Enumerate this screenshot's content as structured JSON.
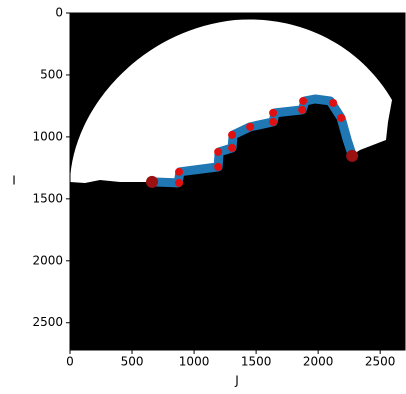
{
  "chart_data": {
    "type": "line",
    "xlabel": "J",
    "ylabel": "I",
    "xlim": [
      0,
      2700
    ],
    "ylim": [
      2720,
      0
    ],
    "xticks": [
      0,
      500,
      1000,
      1500,
      2000,
      2500
    ],
    "yticks": [
      0,
      500,
      1000,
      1500,
      2000,
      2500
    ],
    "series": [
      {
        "type": "line",
        "color": "#1f77b4",
        "x": [
          661,
          871,
          887,
          1194,
          1202,
          1306,
          1315,
          1452,
          1637,
          1653,
          1871,
          1895,
          1976,
          2097,
          2185,
          2234,
          2274
        ],
        "values": [
          1363,
          1371,
          1282,
          1242,
          1121,
          1089,
          984,
          919,
          879,
          806,
          782,
          710,
          694,
          710,
          847,
          1024,
          1145
        ]
      },
      {
        "type": "scatter",
        "color": "#e01010",
        "x": [
          879,
          879,
          1194,
          1194,
          1306,
          1306,
          1452,
          1637,
          1637,
          1871,
          1879,
          2121,
          2185
        ],
        "values": [
          1282,
          1371,
          1242,
          1121,
          1089,
          984,
          919,
          879,
          806,
          782,
          710,
          726,
          847
        ]
      },
      {
        "type": "scatter",
        "color": "#9b1010",
        "x": [
          661,
          2274
        ],
        "values": [
          1363,
          1153
        ]
      }
    ]
  }
}
